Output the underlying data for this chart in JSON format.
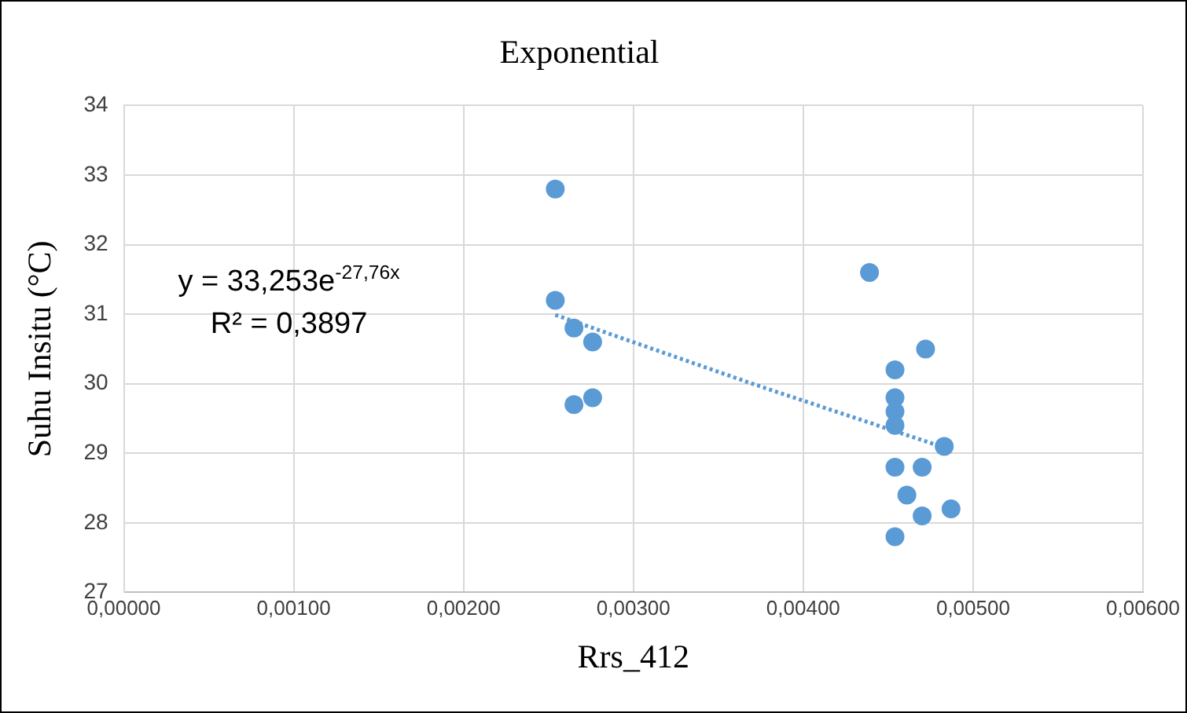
{
  "chart_data": {
    "type": "scatter",
    "title": "Exponential",
    "xlabel": "Rrs_412",
    "ylabel": "Suhu Insitu (°C)",
    "x": [
      0.00254,
      0.00254,
      0.00265,
      0.00276,
      0.00265,
      0.00276,
      0.00439,
      0.00472,
      0.00454,
      0.00454,
      0.00454,
      0.00454,
      0.00483,
      0.00454,
      0.0047,
      0.00461,
      0.0047,
      0.00487,
      0.00454
    ],
    "series": [
      {
        "color": "#5b9bd5",
        "values": [
          32.8,
          31.2,
          30.8,
          30.6,
          29.7,
          29.8,
          31.6,
          30.5,
          30.2,
          29.8,
          29.6,
          29.4,
          29.1,
          28.8,
          28.8,
          28.4,
          28.1,
          28.2,
          27.8
        ]
      },
      {
        "type": "line",
        "color": "#5b9bd5",
        "line_style": "dotted",
        "marker": "none",
        "x": [
          0.00254,
          0.0037,
          0.00487
        ],
        "values": [
          30.99,
          30.0,
          29.05
        ]
      }
    ],
    "xlim": [
      0,
      0.006
    ],
    "xticks": [
      {
        "value": 0,
        "label": "0,00000"
      },
      {
        "value": 0.001,
        "label": "0,00100"
      },
      {
        "value": 0.002,
        "label": "0,00200"
      },
      {
        "value": 0.003,
        "label": "0,00300"
      },
      {
        "value": 0.004,
        "label": "0,00400"
      },
      {
        "value": 0.005,
        "label": "0,00500"
      },
      {
        "value": 0.006,
        "label": "0,00600"
      }
    ],
    "ylim": [
      27,
      34
    ],
    "yticks": [
      27,
      28,
      29,
      30,
      31,
      32,
      33,
      34
    ],
    "grid": true,
    "legend": false,
    "marker": "circle",
    "annotations": [
      "y = 33,253e$^{-27,76x}$",
      "R² = 0,3897"
    ]
  }
}
